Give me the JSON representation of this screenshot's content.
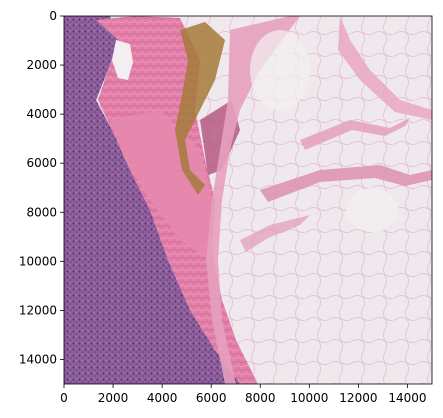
{
  "figure": {
    "kind": "image-with-axes",
    "image_description_icon": "histology-slide-image",
    "x_axis": {
      "range": [
        0,
        15000
      ],
      "ticks": [
        0,
        2000,
        4000,
        6000,
        8000,
        10000,
        12000,
        14000
      ],
      "tick_labels": [
        "0",
        "2000",
        "4000",
        "6000",
        "8000",
        "10000",
        "12000",
        "14000"
      ]
    },
    "y_axis": {
      "range": [
        0,
        15000
      ],
      "inverted": true,
      "ticks": [
        0,
        2000,
        4000,
        6000,
        8000,
        10000,
        12000,
        14000
      ],
      "tick_labels": [
        "0",
        "2000",
        "4000",
        "6000",
        "8000",
        "10000",
        "12000",
        "14000"
      ]
    }
  },
  "colors": {
    "tissue_purple": "#8a5c9a",
    "tissue_dark_purple": "#6a3f7e",
    "stroma_pink": "#e07aa4",
    "light_pink": "#eba6c3",
    "fat_background": "#efe9ec",
    "hemorrhage_brown": "#8a6a2e",
    "axis": "#000000"
  }
}
